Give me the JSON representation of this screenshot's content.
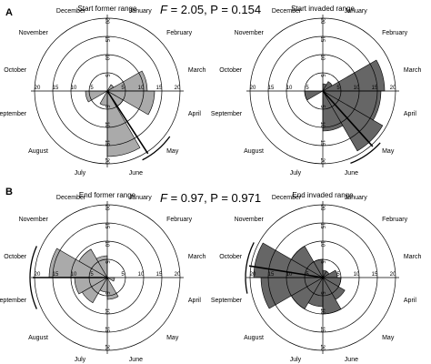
{
  "panel_a_letter": "A",
  "panel_b_letter": "B",
  "stats": [
    {
      "f_symbol": "F",
      "text": " = 2.05, P = 0.154"
    },
    {
      "f_symbol": "F",
      "text": " = 0.97, P = 0.971"
    }
  ],
  "tick_labels": [
    "20",
    "15",
    "10",
    "5"
  ],
  "colors": {
    "former": "#aaaaaa",
    "invaded": "#666666",
    "stroke": "#000000"
  },
  "chart_data": [
    {
      "type": "rose",
      "title": "Start former range",
      "categories": [
        "January",
        "February",
        "March",
        "April",
        "May",
        "June",
        "July",
        "August",
        "September",
        "October",
        "November",
        "December"
      ],
      "values": [
        0,
        2,
        11,
        13,
        5,
        18,
        4,
        0,
        6,
        0,
        0,
        0
      ],
      "mean_direction_month": 4.9,
      "arc_months": [
        4.2,
        5.1
      ],
      "rlim": [
        0,
        20
      ]
    },
    {
      "type": "rose",
      "title": "Start invaded range",
      "categories": [
        "January",
        "February",
        "March",
        "April",
        "May",
        "June",
        "July",
        "August",
        "September",
        "October",
        "November",
        "December"
      ],
      "values": [
        2,
        3,
        17,
        16,
        19,
        11,
        0,
        0,
        5,
        0,
        0,
        0
      ],
      "mean_direction_month": 4.6,
      "arc_months": [
        4.4,
        5.3
      ],
      "rlim": [
        0,
        20
      ]
    },
    {
      "type": "rose",
      "title": "End former range",
      "categories": [
        "January",
        "February",
        "March",
        "April",
        "May",
        "June",
        "July",
        "August",
        "September",
        "October",
        "November",
        "December"
      ],
      "values": [
        0,
        0,
        0,
        2,
        0,
        6,
        4,
        8,
        9,
        16,
        9,
        6
      ],
      "mean_direction_month": 9.0,
      "arc_months": [
        8.2,
        9.8
      ],
      "rlim": [
        0,
        20
      ]
    },
    {
      "type": "rose",
      "title": "End invaded range",
      "categories": [
        "January",
        "February",
        "March",
        "April",
        "May",
        "June",
        "July",
        "August",
        "September",
        "October",
        "November",
        "December"
      ],
      "values": [
        2,
        2,
        4,
        5,
        7,
        10,
        8,
        10,
        17,
        19,
        10,
        5
      ],
      "mean_direction_month": 9.3,
      "arc_months": [
        8.6,
        9.9
      ],
      "rlim": [
        0,
        20
      ]
    }
  ]
}
